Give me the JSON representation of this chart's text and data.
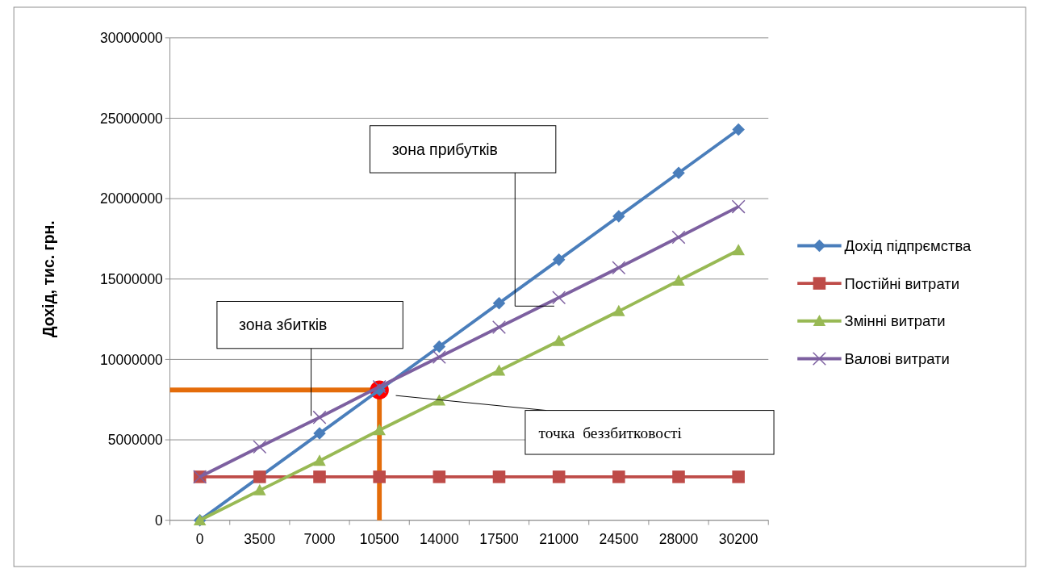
{
  "chart_data": {
    "type": "line",
    "ylabel": "Дохід, тис. грн.",
    "categories": [
      "0",
      "3500",
      "7000",
      "10500",
      "14000",
      "17500",
      "21000",
      "24500",
      "28000",
      "30200"
    ],
    "series": [
      {
        "name": "Дохід підпрємства",
        "color": "#4a7ebb",
        "marker": "diamond",
        "values": [
          0,
          2700000,
          5400000,
          8100000,
          10800000,
          13500000,
          16200000,
          18900000,
          21600000,
          24300000
        ]
      },
      {
        "name": "Постійні витрати",
        "color": "#be4b48",
        "marker": "square",
        "values": [
          2700000,
          2700000,
          2700000,
          2700000,
          2700000,
          2700000,
          2700000,
          2700000,
          2700000,
          2700000
        ]
      },
      {
        "name": "Змінні витрати",
        "color": "#98b954",
        "marker": "triangle",
        "values": [
          0,
          1860000,
          3700000,
          5600000,
          7450000,
          9300000,
          11150000,
          13000000,
          14900000,
          16800000
        ]
      },
      {
        "name": "Валові витрати",
        "color": "#7d60a0",
        "marker": "cross",
        "values": [
          2700000,
          4560000,
          6400000,
          8300000,
          10150000,
          12000000,
          13850000,
          15700000,
          17600000,
          19500000
        ]
      }
    ],
    "ylim": [
      0,
      30000000
    ],
    "yticks": [
      0,
      5000000,
      10000000,
      15000000,
      20000000,
      25000000,
      30000000
    ],
    "grid": "y",
    "legend": "right",
    "line_style": "solid",
    "ref_lines": [
      {
        "axis": "y",
        "value": 8100000,
        "color": "#e46c0a"
      },
      {
        "axis": "x",
        "value": "10500",
        "color": "#e46c0a"
      }
    ],
    "annotations": [
      "зона прибутків",
      "зона збитків",
      "точка  беззбитковості"
    ]
  }
}
